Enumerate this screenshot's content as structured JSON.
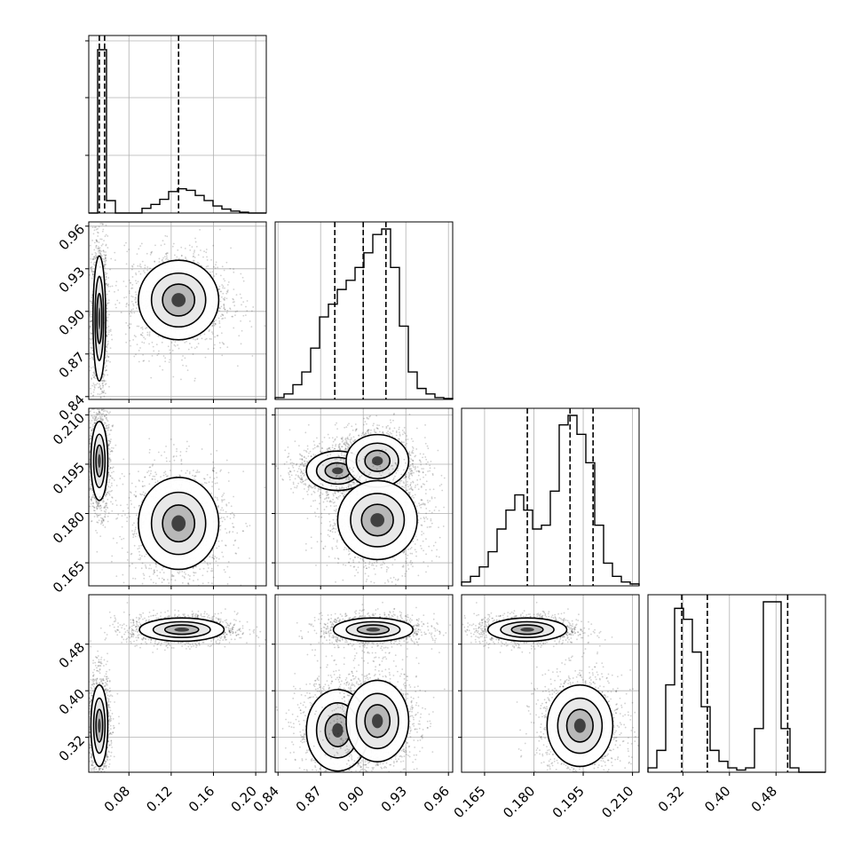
{
  "chart_data": {
    "type": "corner",
    "parameters": 4,
    "grid": true,
    "x_ticks": [
      [
        "0.08",
        "0.12",
        "0.16",
        "0.20"
      ],
      [
        "0.84",
        "0.87",
        "0.90",
        "0.93",
        "0.96"
      ],
      [
        "0.165",
        "0.180",
        "0.195",
        "0.210"
      ],
      [
        "0.32",
        "0.40",
        "0.48"
      ]
    ],
    "y_ticks": [
      [],
      [
        "0.84",
        "0.87",
        "0.90",
        "0.93",
        "0.96"
      ],
      [
        "0.165",
        "0.180",
        "0.195",
        "0.210"
      ],
      [
        "0.32",
        "0.40",
        "0.48"
      ]
    ],
    "ranges": [
      [
        0.042,
        0.21
      ],
      [
        0.838,
        0.963
      ],
      [
        0.158,
        0.212
      ],
      [
        0.26,
        0.565
      ]
    ],
    "histograms": [
      {
        "param": 0,
        "bin_edges_range": [
          0.042,
          0.21
        ],
        "counts": [
          0,
          9,
          1,
          0,
          0,
          0,
          0.12,
          0.22,
          0.35,
          0.55,
          0.62,
          0.58,
          0.45,
          0.32,
          0.18,
          0.1,
          0.05,
          0.02,
          0,
          0
        ],
        "quantile_lines": [
          0.052,
          0.057,
          0.127
        ]
      },
      {
        "param": 1,
        "bin_edges_range": [
          0.838,
          0.963
        ],
        "counts": [
          0.01,
          0.03,
          0.08,
          0.15,
          0.28,
          0.45,
          0.52,
          0.6,
          0.65,
          0.72,
          0.8,
          0.9,
          0.93,
          0.72,
          0.4,
          0.15,
          0.06,
          0.03,
          0.01,
          0.005
        ],
        "quantile_lines": [
          0.88,
          0.9,
          0.916
        ]
      },
      {
        "param": 2,
        "bin_edges_range": [
          0.158,
          0.212
        ],
        "counts": [
          0.02,
          0.05,
          0.1,
          0.18,
          0.3,
          0.4,
          0.48,
          0.4,
          0.3,
          0.32,
          0.5,
          0.85,
          0.9,
          0.8,
          0.65,
          0.32,
          0.12,
          0.05,
          0.02,
          0.01
        ],
        "quantile_lines": [
          0.178,
          0.191,
          0.198
        ]
      },
      {
        "param": 3,
        "bin_edges_range": [
          0.26,
          0.565
        ],
        "counts": [
          0.02,
          0.1,
          0.4,
          0.75,
          0.7,
          0.55,
          0.3,
          0.1,
          0.05,
          0.02,
          0.01,
          0.02,
          0.2,
          0.78,
          0.78,
          0.2,
          0.02,
          0,
          0,
          0
        ],
        "quantile_lines": [
          0.318,
          0.362,
          0.5
        ]
      }
    ],
    "clusters_2d": [
      {
        "x": 1,
        "y": 0,
        "blobs": [
          {
            "cx": 0.052,
            "cy": 0.895,
            "sx": 0.003,
            "sy": 0.022
          },
          {
            "cx": 0.127,
            "cy": 0.908,
            "sx": 0.019,
            "sy": 0.014
          }
        ]
      },
      {
        "x": 2,
        "y": 0,
        "blobs": [
          {
            "cx": 0.052,
            "cy": 0.196,
            "sx": 0.004,
            "sy": 0.006
          },
          {
            "cx": 0.127,
            "cy": 0.177,
            "sx": 0.019,
            "sy": 0.007
          }
        ]
      },
      {
        "x": 2,
        "y": 1,
        "blobs": [
          {
            "cx": 0.882,
            "cy": 0.193,
            "sx": 0.011,
            "sy": 0.003
          },
          {
            "cx": 0.91,
            "cy": 0.196,
            "sx": 0.011,
            "sy": 0.004
          },
          {
            "cx": 0.91,
            "cy": 0.178,
            "sx": 0.014,
            "sy": 0.006
          }
        ]
      },
      {
        "x": 3,
        "y": 0,
        "blobs": [
          {
            "cx": 0.052,
            "cy": 0.34,
            "sx": 0.004,
            "sy": 0.035
          },
          {
            "cx": 0.13,
            "cy": 0.505,
            "sx": 0.02,
            "sy": 0.01
          }
        ]
      },
      {
        "x": 3,
        "y": 1,
        "blobs": [
          {
            "cx": 0.907,
            "cy": 0.505,
            "sx": 0.014,
            "sy": 0.01
          },
          {
            "cx": 0.882,
            "cy": 0.332,
            "sx": 0.011,
            "sy": 0.035
          },
          {
            "cx": 0.91,
            "cy": 0.348,
            "sx": 0.011,
            "sy": 0.035
          }
        ]
      },
      {
        "x": 3,
        "y": 2,
        "blobs": [
          {
            "cx": 0.178,
            "cy": 0.505,
            "sx": 0.006,
            "sy": 0.01
          },
          {
            "cx": 0.194,
            "cy": 0.34,
            "sx": 0.005,
            "sy": 0.035
          }
        ]
      }
    ]
  }
}
